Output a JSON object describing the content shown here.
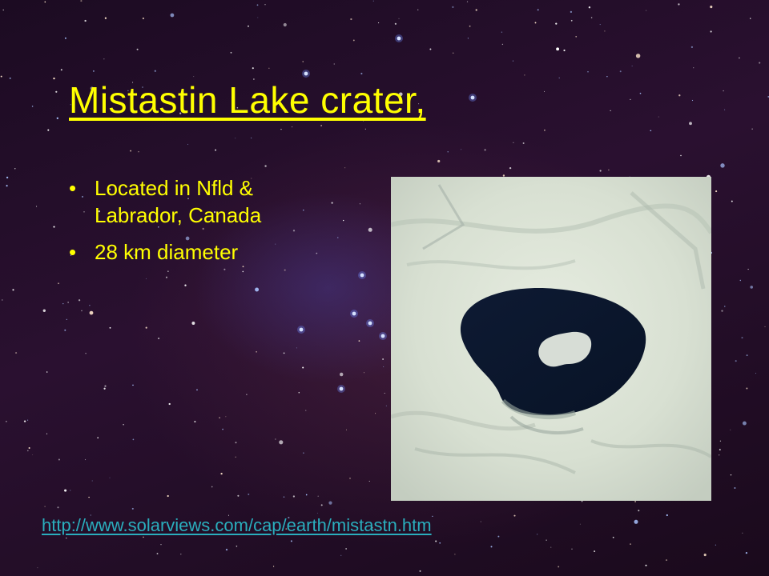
{
  "slide": {
    "title": "Mistastin Lake crater,",
    "bullets": [
      "Located in Nfld & Labrador, Canada",
      "28 km diameter"
    ],
    "source_link": "http://www.solarviews.com/cap/earth/mistastn.htm",
    "photo_icon": "satellite-photo-of-crater-lake",
    "colors": {
      "title": "#ffff00",
      "bullets": "#ffff00",
      "link": "#2aaebd",
      "background": "#1c0b22"
    }
  }
}
